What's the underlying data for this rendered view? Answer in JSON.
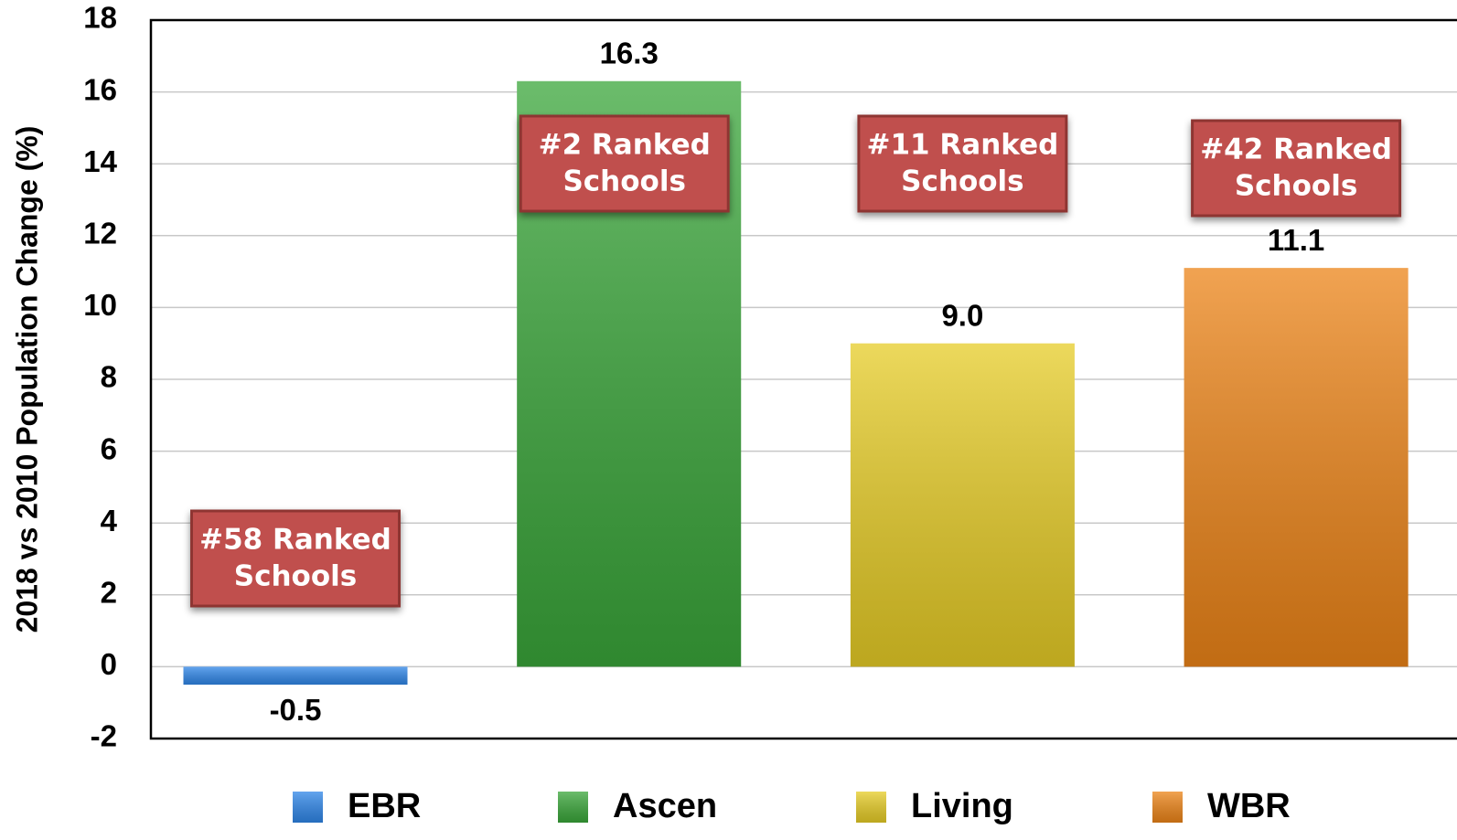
{
  "chart_data": {
    "type": "bar",
    "ylabel": "2018 vs 2010 Population Change (%)",
    "categories": [
      "EBR",
      "Ascen",
      "Living",
      "WBR"
    ],
    "values": [
      -0.5,
      16.3,
      9.0,
      11.1
    ],
    "value_labels": [
      "-0.5",
      "16.3",
      "9.0",
      "11.1"
    ],
    "colors": [
      "#2f86e8",
      "#3aa63a",
      "#e6cc26",
      "#ec8418"
    ],
    "ylim": [
      -2,
      18
    ],
    "yticks": [
      -2,
      0,
      2,
      4,
      6,
      8,
      10,
      12,
      14,
      16,
      18
    ],
    "grid": true,
    "legend": "bottom",
    "annotations": [
      {
        "lines": [
          "#58 Ranked",
          "Schools"
        ]
      },
      {
        "lines": [
          "#2 Ranked",
          "Schools"
        ]
      },
      {
        "lines": [
          "#11 Ranked",
          "Schools"
        ]
      },
      {
        "lines": [
          "#42 Ranked",
          "Schools"
        ]
      }
    ]
  }
}
